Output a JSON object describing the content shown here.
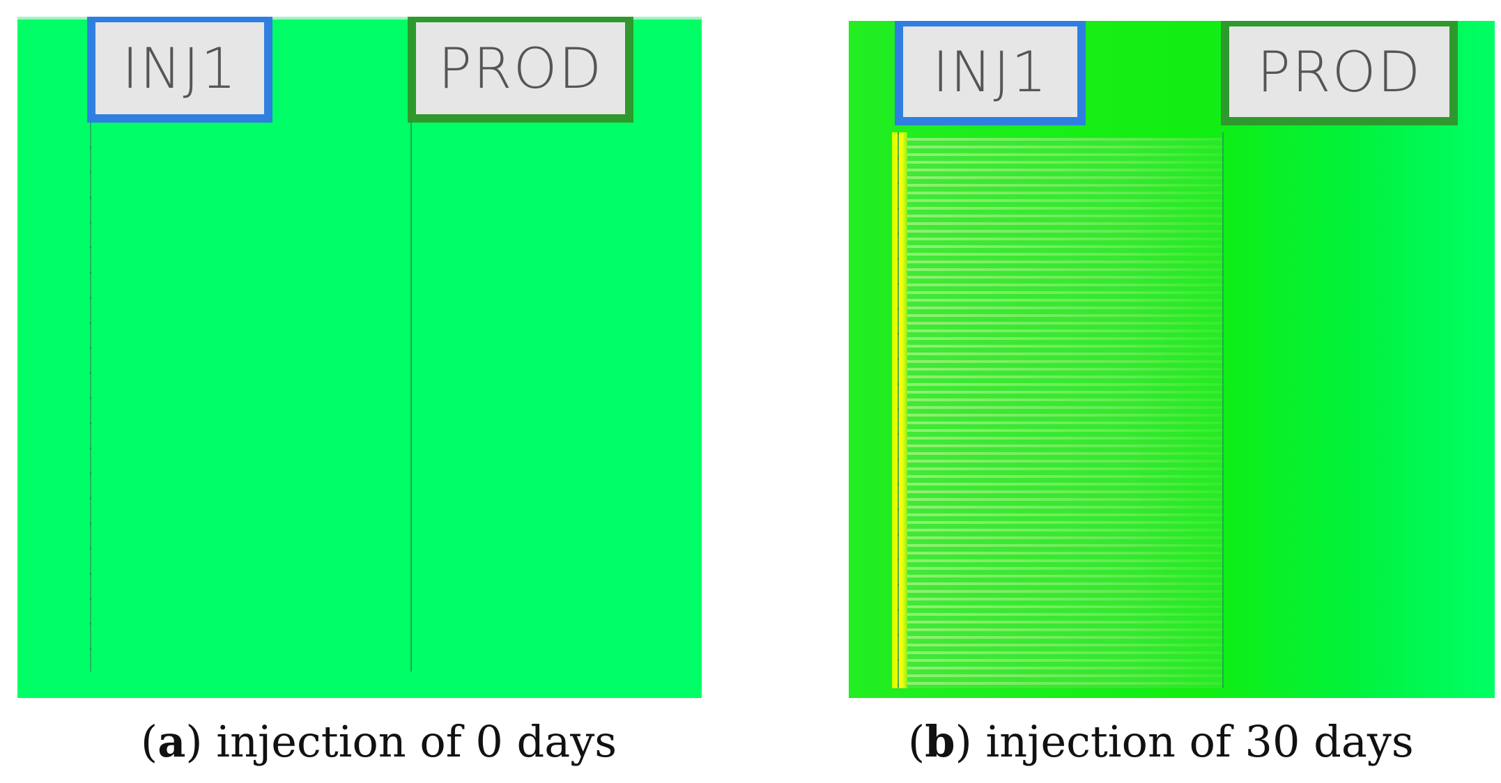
{
  "panels": [
    {
      "letter": "a",
      "caption_text": "injection of 0 days",
      "wells": {
        "injector_label": "INJ1",
        "producer_label": "PROD"
      }
    },
    {
      "letter": "b",
      "caption_text": "injection of 30 days",
      "wells": {
        "injector_label": "INJ1",
        "producer_label": "PROD"
      }
    }
  ],
  "colors": {
    "background_green": "#00ff66",
    "injector_border": "#2f7fe0",
    "producer_border": "#2e9a2e",
    "flood_front_yellow": "#ffff00"
  }
}
